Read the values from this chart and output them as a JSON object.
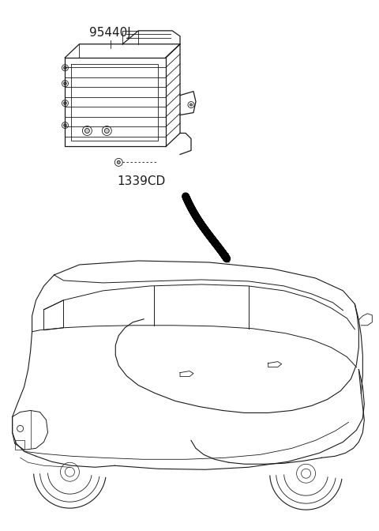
{
  "bg_color": "#ffffff",
  "line_color": "#1a1a1a",
  "label_95440J": "95440J",
  "label_1339CD": "1339CD",
  "figsize": [
    4.8,
    6.72
  ],
  "dpi": 100
}
